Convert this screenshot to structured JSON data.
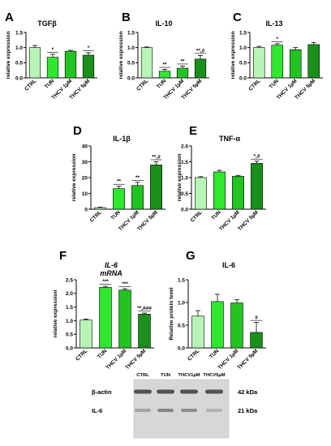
{
  "colors": {
    "CTRL": "#b6f5b6",
    "TUN": "#2ee82e",
    "THCV 1µM": "#21c421",
    "THCV 5µM": "#1a8f1a",
    "blot_band": "#444444"
  },
  "chart_data": [
    {
      "id": "A",
      "type": "bar",
      "letter": "A",
      "title": "TGFβ",
      "ylabel": "relative expression",
      "ylim": [
        0,
        1.5
      ],
      "yticks": [
        "0.0",
        "0.5",
        "1.0",
        "1.5"
      ],
      "ytick_values": [
        0,
        0.5,
        1.0,
        1.5
      ],
      "categories": [
        "CTRL",
        "TUN",
        "THCV 1µM",
        "THCV 5µM"
      ],
      "values": [
        1.0,
        0.68,
        0.88,
        0.75
      ],
      "errors": [
        0.07,
        0.1,
        0.03,
        0.08
      ],
      "annotations": [
        "",
        "*",
        "",
        "*"
      ]
    },
    {
      "id": "B",
      "type": "bar",
      "letter": "B",
      "title": "IL-10",
      "ylabel": "relative expression",
      "ylim": [
        0,
        1.5
      ],
      "yticks": [
        "0.0",
        "0.5",
        "1.0",
        "1.5"
      ],
      "ytick_values": [
        0,
        0.5,
        1.0,
        1.5
      ],
      "categories": [
        "CTRL",
        "TUN",
        "THCV 1µM",
        "THCV 5µM"
      ],
      "values": [
        1.0,
        0.22,
        0.32,
        0.62
      ],
      "errors": [
        0.02,
        0.06,
        0.07,
        0.12
      ],
      "annotations": [
        "",
        "**",
        "**",
        "**,#"
      ]
    },
    {
      "id": "C",
      "type": "bar",
      "letter": "C",
      "title": "IL-13",
      "ylabel": "relative expression",
      "ylim": [
        0,
        1.5
      ],
      "yticks": [
        "0.0",
        "0.5",
        "1.0",
        "1.5"
      ],
      "ytick_values": [
        0,
        0.5,
        1.0,
        1.5
      ],
      "categories": [
        "CTRL",
        "TUN",
        "THCV 1µM",
        "THCV 5µM"
      ],
      "values": [
        1.0,
        1.08,
        0.93,
        1.1
      ],
      "errors": [
        0.04,
        0.05,
        0.07,
        0.07
      ],
      "annotations": [
        "",
        "*",
        "",
        ""
      ]
    },
    {
      "id": "D",
      "type": "bar",
      "letter": "D",
      "title": "IL-1β",
      "ylabel": "relative expression",
      "ylim": [
        0,
        40
      ],
      "yticks": [
        "0",
        "10",
        "20",
        "30",
        "40"
      ],
      "ytick_values": [
        0,
        10,
        20,
        30,
        40
      ],
      "categories": [
        "CTRL",
        "TUN",
        "THCV 1µM",
        "THCV 5µM"
      ],
      "values": [
        1.0,
        13,
        15,
        28
      ],
      "errors": [
        0.3,
        1.5,
        2.0,
        2.0
      ],
      "annotations": [
        "",
        "**",
        "**",
        "**,#"
      ]
    },
    {
      "id": "E",
      "type": "bar",
      "letter": "E",
      "title": "TNF-α",
      "ylabel": "relative expression",
      "ylim": [
        0,
        2.0
      ],
      "yticks": [
        "0.0",
        "0.5",
        "1.0",
        "1.5",
        "2.0"
      ],
      "ytick_values": [
        0,
        0.5,
        1.0,
        1.5,
        2.0
      ],
      "categories": [
        "CTRL",
        "TUN",
        "THCV 1µM",
        "THCV 5µM"
      ],
      "values": [
        1.0,
        1.18,
        1.04,
        1.45
      ],
      "errors": [
        0.03,
        0.05,
        0.03,
        0.07
      ],
      "annotations": [
        "",
        "",
        "",
        "*,#"
      ]
    },
    {
      "id": "F",
      "type": "bar",
      "letter": "F",
      "title": "IL-6",
      "subtitle": "mRNA",
      "ylabel": "relative expression",
      "ylim": [
        0,
        2.5
      ],
      "yticks": [
        "0.0",
        "0.5",
        "1.0",
        "1.5",
        "2.0",
        "2.5"
      ],
      "ytick_values": [
        0,
        0.5,
        1.0,
        1.5,
        2.0,
        2.5
      ],
      "categories": [
        "CTRL",
        "TUN",
        "THCV 1µM",
        "THCV 5µM"
      ],
      "values": [
        1.02,
        2.22,
        2.12,
        1.24
      ],
      "errors": [
        0.04,
        0.04,
        0.05,
        0.04
      ],
      "annotations": [
        "",
        "***",
        "***",
        "**,###"
      ]
    },
    {
      "id": "G",
      "type": "bar",
      "letter": "G",
      "title": "IL-6",
      "ylabel": "Relative protein level",
      "ylim": [
        0,
        1.5
      ],
      "yticks": [
        "0.0",
        "0.5",
        "1.0",
        "1.5"
      ],
      "ytick_values": [
        0,
        0.5,
        1.0,
        1.5
      ],
      "categories": [
        "CTRL",
        "TUN",
        "THCV 1µM",
        "THCV 5µM"
      ],
      "values": [
        0.7,
        1.02,
        0.99,
        0.34
      ],
      "errors": [
        0.12,
        0.16,
        0.07,
        0.22
      ],
      "annotations": [
        "",
        "",
        "",
        "#"
      ]
    }
  ],
  "blot": {
    "lanes": [
      "CTRL",
      "TUN",
      "THCV1µM",
      "THCV5µM"
    ],
    "rows": [
      {
        "label": "β-actin",
        "size": "42 kDa"
      },
      {
        "label": "IL-6",
        "size": "21 kDa"
      }
    ]
  }
}
